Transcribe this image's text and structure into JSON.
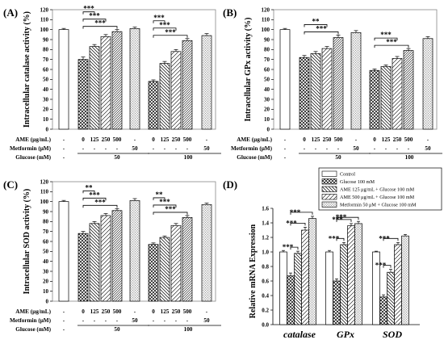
{
  "figure": {
    "colors": {
      "ink": "#000000",
      "background": "#ffffff",
      "frame": "#888888",
      "gridline": "#9a9a9a"
    }
  },
  "chart_data": [
    {
      "id": "A",
      "panel_label": "(A)",
      "type": "bar",
      "ylabel": "Intracellular catalase activity (%)",
      "ylim": [
        0,
        120
      ],
      "yticks": [
        0,
        10,
        20,
        30,
        40,
        50,
        60,
        70,
        80,
        90,
        100,
        110,
        120
      ],
      "grid": false,
      "table_rows": [
        "AME (μg/mL)",
        "Metformin (μM)",
        "Glucose (mM)"
      ],
      "bars": [
        {
          "value": 100,
          "err": 1.2,
          "pattern": "none",
          "ame": "-",
          "metformin": "-",
          "glucose": "-"
        },
        {
          "value": 70,
          "err": 2.5,
          "pattern": "cross",
          "ame": "0",
          "metformin": "-",
          "glucose": ""
        },
        {
          "value": 83,
          "err": 2,
          "pattern": "back",
          "ame": "125",
          "metformin": "-",
          "glucose": ""
        },
        {
          "value": 93,
          "err": 2,
          "pattern": "fwd",
          "ame": "250",
          "metformin": "-",
          "glucose": ""
        },
        {
          "value": 98,
          "err": 2,
          "pattern": "fwd-dense",
          "ame": "500",
          "metformin": "-",
          "glucose": ""
        },
        {
          "value": 101,
          "err": 1.5,
          "pattern": "dots",
          "ame": "-",
          "metformin": "50",
          "glucose": ""
        },
        {
          "value": 48,
          "err": 1.5,
          "pattern": "cross",
          "ame": "0",
          "metformin": "-",
          "glucose": ""
        },
        {
          "value": 66,
          "err": 2,
          "pattern": "back",
          "ame": "125",
          "metformin": "-",
          "glucose": ""
        },
        {
          "value": 78,
          "err": 2,
          "pattern": "fwd",
          "ame": "250",
          "metformin": "-",
          "glucose": ""
        },
        {
          "value": 89,
          "err": 2,
          "pattern": "fwd-dense",
          "ame": "500",
          "metformin": "-",
          "glucose": ""
        },
        {
          "value": 94,
          "err": 2,
          "pattern": "dots",
          "ame": "-",
          "metformin": "50",
          "glucose": ""
        }
      ],
      "glucose_groups": [
        {
          "label": "50",
          "from": 1,
          "to": 5
        },
        {
          "label": "100",
          "from": 6,
          "to": 10
        }
      ],
      "significance": [
        {
          "from": 1,
          "to": 2,
          "label": "***"
        },
        {
          "from": 1,
          "to": 3,
          "label": "***"
        },
        {
          "from": 1,
          "to": 4,
          "label": "***"
        },
        {
          "from": 6,
          "to": 7,
          "label": "***"
        },
        {
          "from": 6,
          "to": 8,
          "label": "***"
        },
        {
          "from": 6,
          "to": 9,
          "label": "***"
        }
      ]
    },
    {
      "id": "B",
      "panel_label": "(B)",
      "type": "bar",
      "ylabel": "Intracellular GPx activity (%)",
      "ylim": [
        0,
        120
      ],
      "yticks": [
        0,
        10,
        20,
        30,
        40,
        50,
        60,
        70,
        80,
        90,
        100,
        110,
        120
      ],
      "grid": false,
      "table_rows": [
        "AME (μg/mL)",
        "Metformin (μM)",
        "Glucose (mM)"
      ],
      "bars": [
        {
          "value": 100,
          "err": 1.2,
          "pattern": "none",
          "ame": "-",
          "metformin": "-",
          "glucose": "-"
        },
        {
          "value": 72,
          "err": 2,
          "pattern": "cross",
          "ame": "0",
          "metformin": "-",
          "glucose": ""
        },
        {
          "value": 76,
          "err": 2,
          "pattern": "back",
          "ame": "125",
          "metformin": "-",
          "glucose": ""
        },
        {
          "value": 81,
          "err": 2,
          "pattern": "fwd",
          "ame": "250",
          "metformin": "-",
          "glucose": ""
        },
        {
          "value": 92,
          "err": 2.5,
          "pattern": "fwd-dense",
          "ame": "500",
          "metformin": "-",
          "glucose": ""
        },
        {
          "value": 97,
          "err": 2,
          "pattern": "dots",
          "ame": "-",
          "metformin": "50",
          "glucose": ""
        },
        {
          "value": 59,
          "err": 1.5,
          "pattern": "cross",
          "ame": "0",
          "metformin": "-",
          "glucose": ""
        },
        {
          "value": 63,
          "err": 1.5,
          "pattern": "back",
          "ame": "125",
          "metformin": "-",
          "glucose": ""
        },
        {
          "value": 71,
          "err": 2,
          "pattern": "fwd",
          "ame": "250",
          "metformin": "-",
          "glucose": ""
        },
        {
          "value": 79,
          "err": 2,
          "pattern": "fwd-dense",
          "ame": "500",
          "metformin": "-",
          "glucose": ""
        },
        {
          "value": 91,
          "err": 2,
          "pattern": "dots",
          "ame": "-",
          "metformin": "50",
          "glucose": ""
        }
      ],
      "glucose_groups": [
        {
          "label": "50",
          "from": 1,
          "to": 5
        },
        {
          "label": "100",
          "from": 6,
          "to": 10
        }
      ],
      "significance": [
        {
          "from": 1,
          "to": 3,
          "label": "**"
        },
        {
          "from": 1,
          "to": 4,
          "label": "***"
        },
        {
          "from": 6,
          "to": 8,
          "label": "***"
        },
        {
          "from": 6,
          "to": 9,
          "label": "***"
        }
      ]
    },
    {
      "id": "C",
      "panel_label": "(C)",
      "type": "bar",
      "ylabel": "Intracellular SOD activity (%)",
      "ylim": [
        0,
        120
      ],
      "yticks": [
        0,
        10,
        20,
        30,
        40,
        50,
        60,
        70,
        80,
        90,
        100,
        110,
        120
      ],
      "grid": false,
      "table_rows": [
        "AME (μg/mL)",
        "Metformin (μM)",
        "Glucose (mM)"
      ],
      "bars": [
        {
          "value": 100,
          "err": 1.2,
          "pattern": "none",
          "ame": "-",
          "metformin": "-",
          "glucose": "-"
        },
        {
          "value": 68,
          "err": 2,
          "pattern": "cross",
          "ame": "0",
          "metformin": "-",
          "glucose": ""
        },
        {
          "value": 78,
          "err": 2,
          "pattern": "back",
          "ame": "125",
          "metformin": "-",
          "glucose": ""
        },
        {
          "value": 86,
          "err": 2,
          "pattern": "fwd",
          "ame": "250",
          "metformin": "-",
          "glucose": ""
        },
        {
          "value": 91,
          "err": 2,
          "pattern": "fwd-dense",
          "ame": "500",
          "metformin": "-",
          "glucose": ""
        },
        {
          "value": 101,
          "err": 2,
          "pattern": "dots",
          "ame": "-",
          "metformin": "50",
          "glucose": ""
        },
        {
          "value": 57,
          "err": 1.5,
          "pattern": "cross",
          "ame": "0",
          "metformin": "-",
          "glucose": ""
        },
        {
          "value": 64,
          "err": 1.5,
          "pattern": "back",
          "ame": "125",
          "metformin": "-",
          "glucose": ""
        },
        {
          "value": 76,
          "err": 2,
          "pattern": "fwd",
          "ame": "250",
          "metformin": "-",
          "glucose": ""
        },
        {
          "value": 84,
          "err": 2,
          "pattern": "fwd-dense",
          "ame": "500",
          "metformin": "-",
          "glucose": ""
        },
        {
          "value": 97,
          "err": 1.5,
          "pattern": "dots",
          "ame": "-",
          "metformin": "50",
          "glucose": ""
        }
      ],
      "glucose_groups": [
        {
          "label": "50",
          "from": 1,
          "to": 5
        },
        {
          "label": "100",
          "from": 6,
          "to": 10
        }
      ],
      "significance": [
        {
          "from": 1,
          "to": 2,
          "label": "**"
        },
        {
          "from": 1,
          "to": 3,
          "label": "***"
        },
        {
          "from": 1,
          "to": 4,
          "label": "***"
        },
        {
          "from": 6,
          "to": 7,
          "label": "**"
        },
        {
          "from": 6,
          "to": 8,
          "label": "***"
        },
        {
          "from": 6,
          "to": 9,
          "label": "***"
        }
      ]
    },
    {
      "id": "D",
      "panel_label": "(D)",
      "type": "bar",
      "ylabel": "Relative mRNA Expression",
      "ylim": [
        0,
        1.6
      ],
      "yticks": [
        0.0,
        0.2,
        0.4,
        0.6,
        0.8,
        1.0,
        1.2,
        1.4,
        1.6
      ],
      "grid": false,
      "legend_position": "top-right",
      "categories": [
        "catalase",
        "GPx",
        "SOD"
      ],
      "series": [
        {
          "name": "Control",
          "pattern": "none",
          "values": [
            1.0,
            1.0,
            1.0
          ],
          "err": [
            0.02,
            0.02,
            0.01
          ]
        },
        {
          "name": "Glucose 100 mM",
          "pattern": "cross",
          "values": [
            0.67,
            0.6,
            0.38
          ],
          "err": [
            0.04,
            0.03,
            0.03
          ]
        },
        {
          "name": "AME 125 μg/mL + Glucose 100 mM",
          "pattern": "back",
          "values": [
            0.98,
            1.1,
            0.72
          ],
          "err": [
            0.03,
            0.03,
            0.04
          ]
        },
        {
          "name": "AME 500 μg/mL + Glucose 100 mM",
          "pattern": "fwd",
          "values": [
            1.3,
            1.36,
            1.1
          ],
          "err": [
            0.04,
            0.03,
            0.03
          ]
        },
        {
          "name": "Metformin 50 μM + Glucose 100 mM",
          "pattern": "dots",
          "values": [
            1.46,
            1.39,
            1.22
          ],
          "err": [
            0.03,
            0.03,
            0.02
          ]
        }
      ],
      "significance": [
        {
          "cat": 0,
          "from": 1,
          "to": 2,
          "label": "***"
        },
        {
          "cat": 0,
          "from": 1,
          "to": 3,
          "label": "***"
        },
        {
          "cat": 0,
          "from": 1,
          "to": 4,
          "label": "***"
        },
        {
          "cat": 1,
          "from": 1,
          "to": 2,
          "label": "***"
        },
        {
          "cat": 1,
          "from": 1,
          "to": 3,
          "label": "***"
        },
        {
          "cat": 1,
          "from": 1,
          "to": 4,
          "label": "***"
        },
        {
          "cat": 2,
          "from": 1,
          "to": 2,
          "label": "***"
        },
        {
          "cat": 2,
          "from": 1,
          "to": 3,
          "label": "***"
        }
      ]
    }
  ]
}
